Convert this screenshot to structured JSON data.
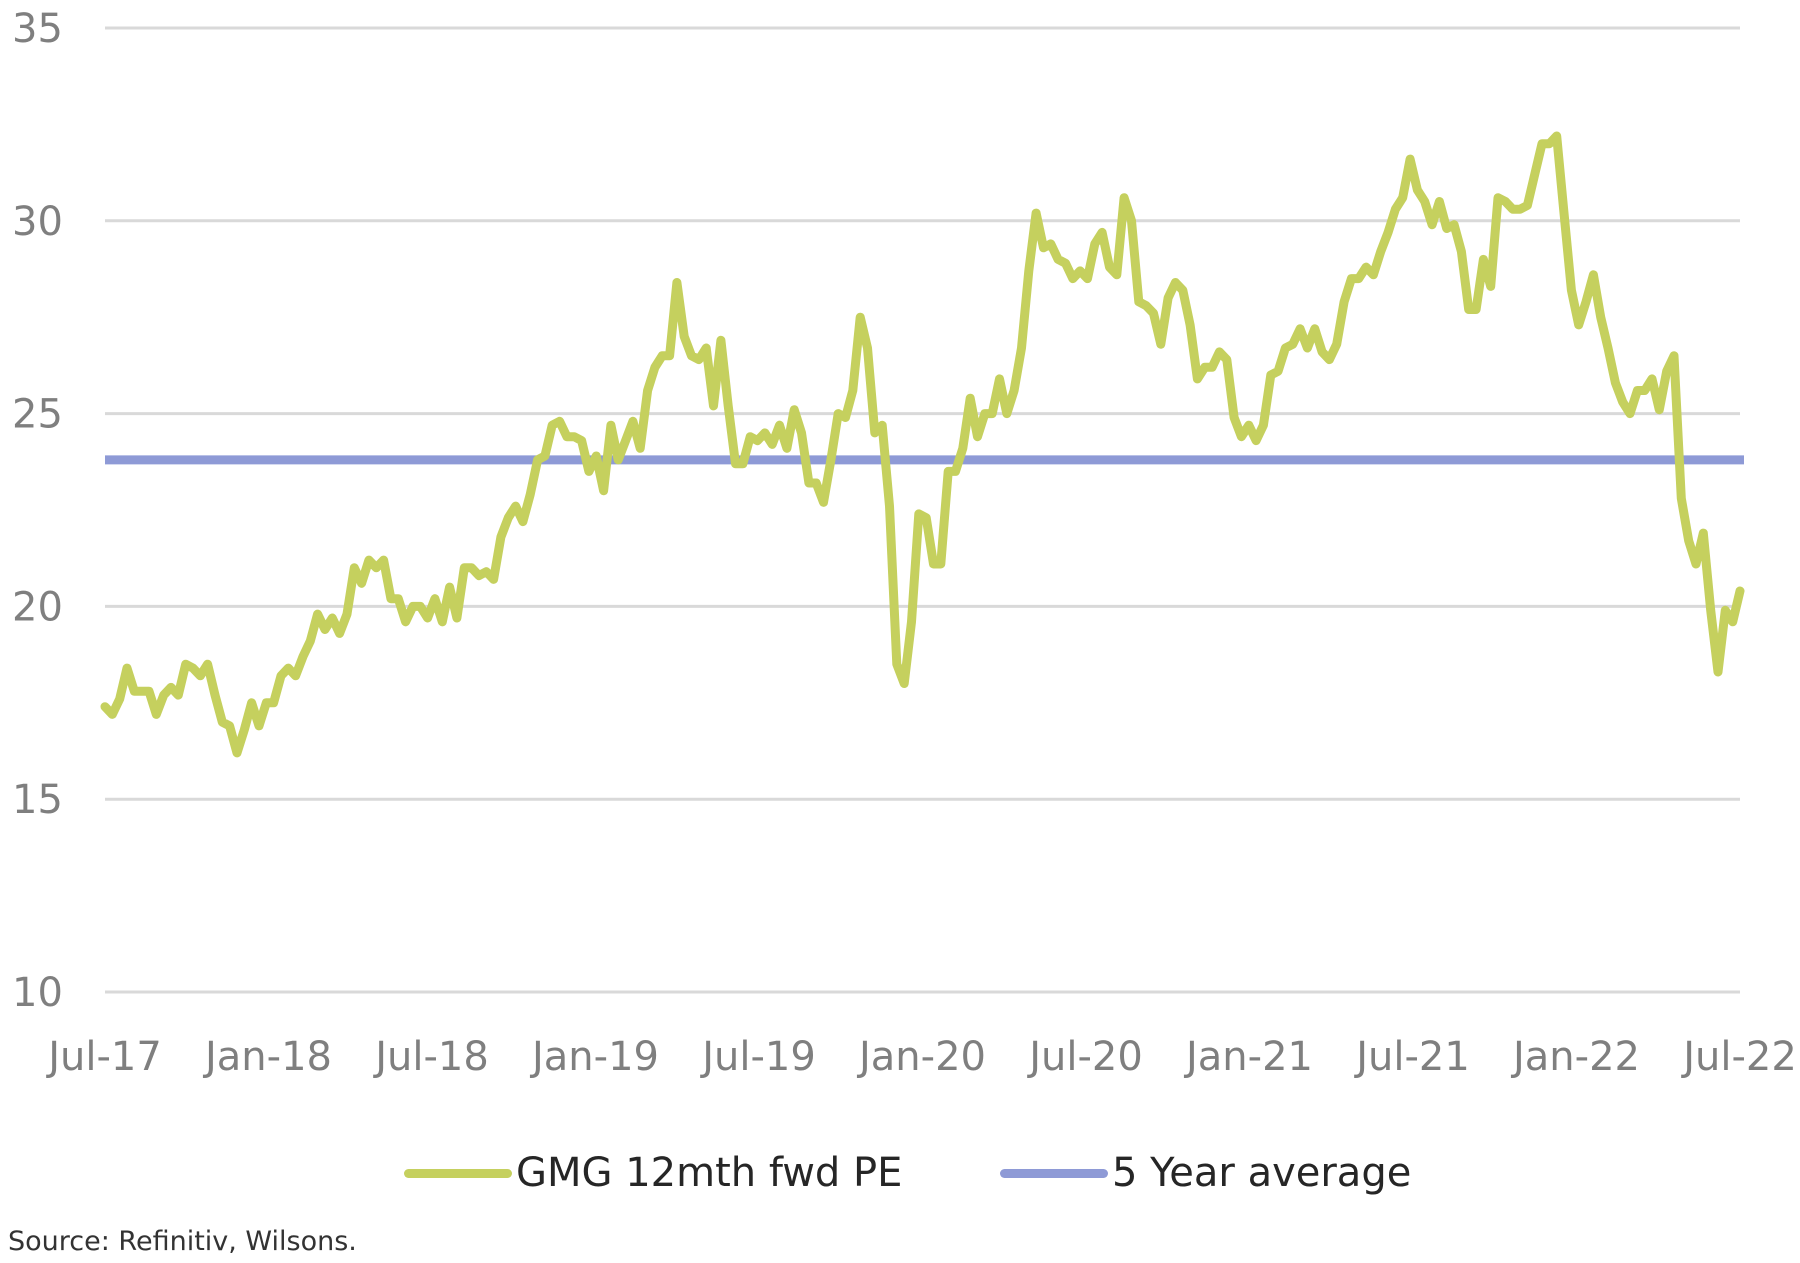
{
  "chart_data": {
    "type": "line",
    "title": "",
    "xlabel": "",
    "ylabel": "",
    "ylim": [
      10,
      35
    ],
    "yticks": [
      "35",
      "30",
      "25",
      "20",
      "15",
      "10"
    ],
    "xticks": [
      "Jul-17",
      "Jan-18",
      "Jul-18",
      "Jan-19",
      "Jul-19",
      "Jan-20",
      "Jul-20",
      "Jan-21",
      "Jul-21",
      "Jan-22",
      "Jul-22"
    ],
    "grid": "horizontal",
    "legend": "bottom",
    "series": [
      {
        "name": "GMG 12mth fwd PE",
        "color": "#c5d05e",
        "x_range": [
          "Jul-17",
          "Jul-22"
        ],
        "values": [
          17.4,
          17.2,
          17.6,
          18.4,
          17.8,
          17.8,
          17.8,
          17.2,
          17.7,
          17.9,
          17.7,
          18.5,
          18.4,
          18.2,
          18.5,
          17.7,
          17.0,
          16.9,
          16.2,
          16.8,
          17.5,
          16.9,
          17.5,
          17.5,
          18.2,
          18.4,
          18.2,
          18.7,
          19.1,
          19.8,
          19.4,
          19.7,
          19.3,
          19.8,
          21.0,
          20.6,
          21.2,
          21.0,
          21.2,
          20.2,
          20.2,
          19.6,
          20.0,
          20.0,
          19.7,
          20.2,
          19.6,
          20.5,
          19.7,
          21.0,
          21.0,
          20.8,
          20.9,
          20.7,
          21.8,
          22.3,
          22.6,
          22.2,
          22.9,
          23.8,
          23.9,
          24.7,
          24.8,
          24.4,
          24.4,
          24.3,
          23.5,
          23.9,
          23.0,
          24.7,
          23.8,
          24.3,
          24.8,
          24.1,
          25.6,
          26.2,
          26.5,
          26.5,
          28.4,
          27.0,
          26.5,
          26.4,
          26.7,
          25.2,
          26.9,
          25.2,
          23.7,
          23.7,
          24.4,
          24.3,
          24.5,
          24.2,
          24.7,
          24.1,
          25.1,
          24.5,
          23.2,
          23.2,
          22.7,
          23.8,
          25.0,
          24.9,
          25.6,
          27.5,
          26.7,
          24.5,
          24.7,
          22.6,
          18.5,
          18.0,
          19.6,
          22.4,
          22.3,
          21.1,
          21.1,
          23.5,
          23.5,
          24.1,
          25.4,
          24.4,
          25.0,
          25.0,
          25.9,
          25.0,
          25.6,
          26.7,
          28.7,
          30.2,
          29.3,
          29.4,
          29.0,
          28.9,
          28.5,
          28.7,
          28.5,
          29.4,
          29.7,
          28.8,
          28.6,
          30.6,
          30.0,
          27.9,
          27.8,
          27.6,
          26.8,
          28.0,
          28.4,
          28.2,
          27.3,
          25.9,
          26.2,
          26.2,
          26.6,
          26.4,
          24.9,
          24.4,
          24.7,
          24.3,
          24.7,
          26.0,
          26.1,
          26.7,
          26.8,
          27.2,
          26.7,
          27.2,
          26.6,
          26.4,
          26.8,
          27.9,
          28.5,
          28.5,
          28.8,
          28.6,
          29.2,
          29.7,
          30.3,
          30.6,
          31.6,
          30.8,
          30.5,
          29.9,
          30.5,
          29.8,
          29.9,
          29.2,
          27.7,
          27.7,
          29.0,
          28.3,
          30.6,
          30.5,
          30.3,
          30.3,
          30.4,
          31.2,
          32.0,
          32.0,
          32.2,
          30.2,
          28.2,
          27.3,
          27.9,
          28.6,
          27.5,
          26.7,
          25.8,
          25.3,
          25.0,
          25.6,
          25.6,
          25.9,
          25.1,
          26.1,
          26.5,
          22.8,
          21.7,
          21.1,
          21.9,
          19.9,
          18.3,
          19.9,
          19.6,
          20.4
        ]
      },
      {
        "name": "5 Year average",
        "color": "#8e9ad6",
        "value": 23.8
      }
    ]
  },
  "source": "Source: Refinitiv, Wilsons."
}
